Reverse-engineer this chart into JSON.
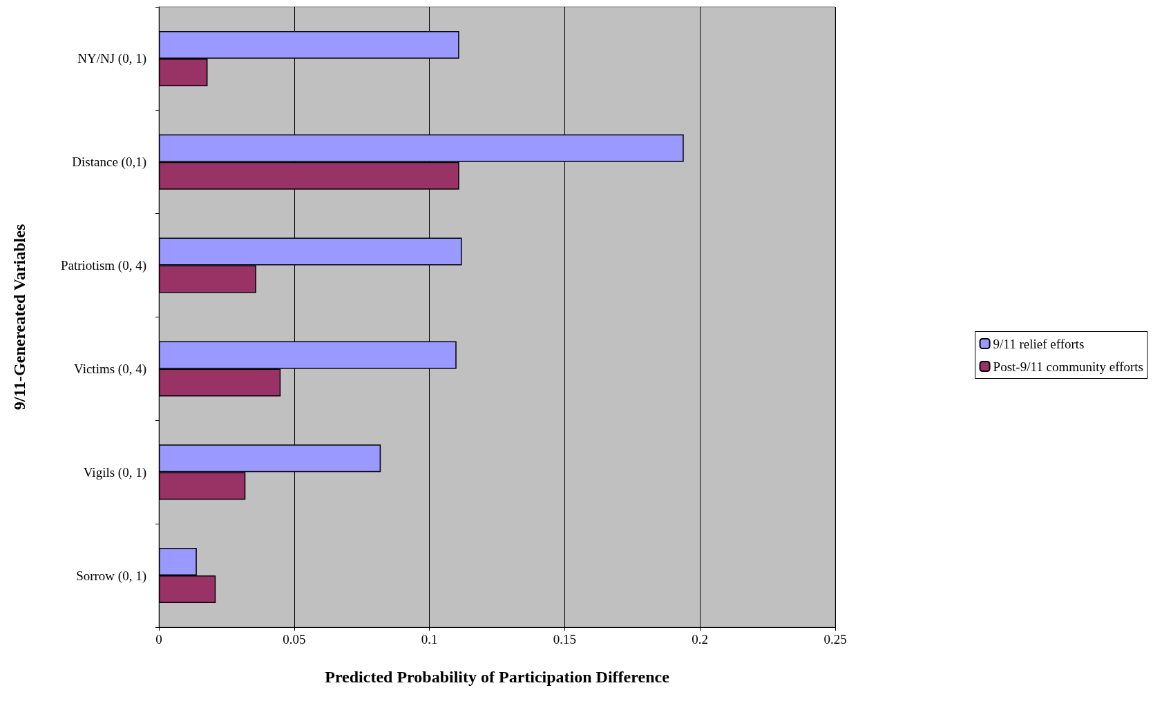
{
  "chart_data": {
    "type": "bar",
    "orientation": "horizontal",
    "xlabel": "Predicted Probability of Participation Difference",
    "ylabel": "9/11-Genereated Variables",
    "categories": [
      "NY/NJ (0, 1)",
      "Distance (0,1)",
      "Patriotism (0, 4)",
      "Victims (0, 4)",
      "Vigils (0, 1)",
      "Sorrow (0, 1)"
    ],
    "series": [
      {
        "name": "9/11 relief efforts",
        "color": "#9999ff",
        "values": [
          0.111,
          0.194,
          0.112,
          0.11,
          0.082,
          0.014
        ]
      },
      {
        "name": "Post-9/11 community efforts",
        "color": "#993366",
        "values": [
          0.018,
          0.111,
          0.036,
          0.045,
          0.032,
          0.021
        ]
      }
    ],
    "xlim": [
      0,
      0.25
    ],
    "xticks": [
      0,
      0.05,
      0.1,
      0.15,
      0.2,
      0.25
    ],
    "grid": "x",
    "legend": "right"
  }
}
